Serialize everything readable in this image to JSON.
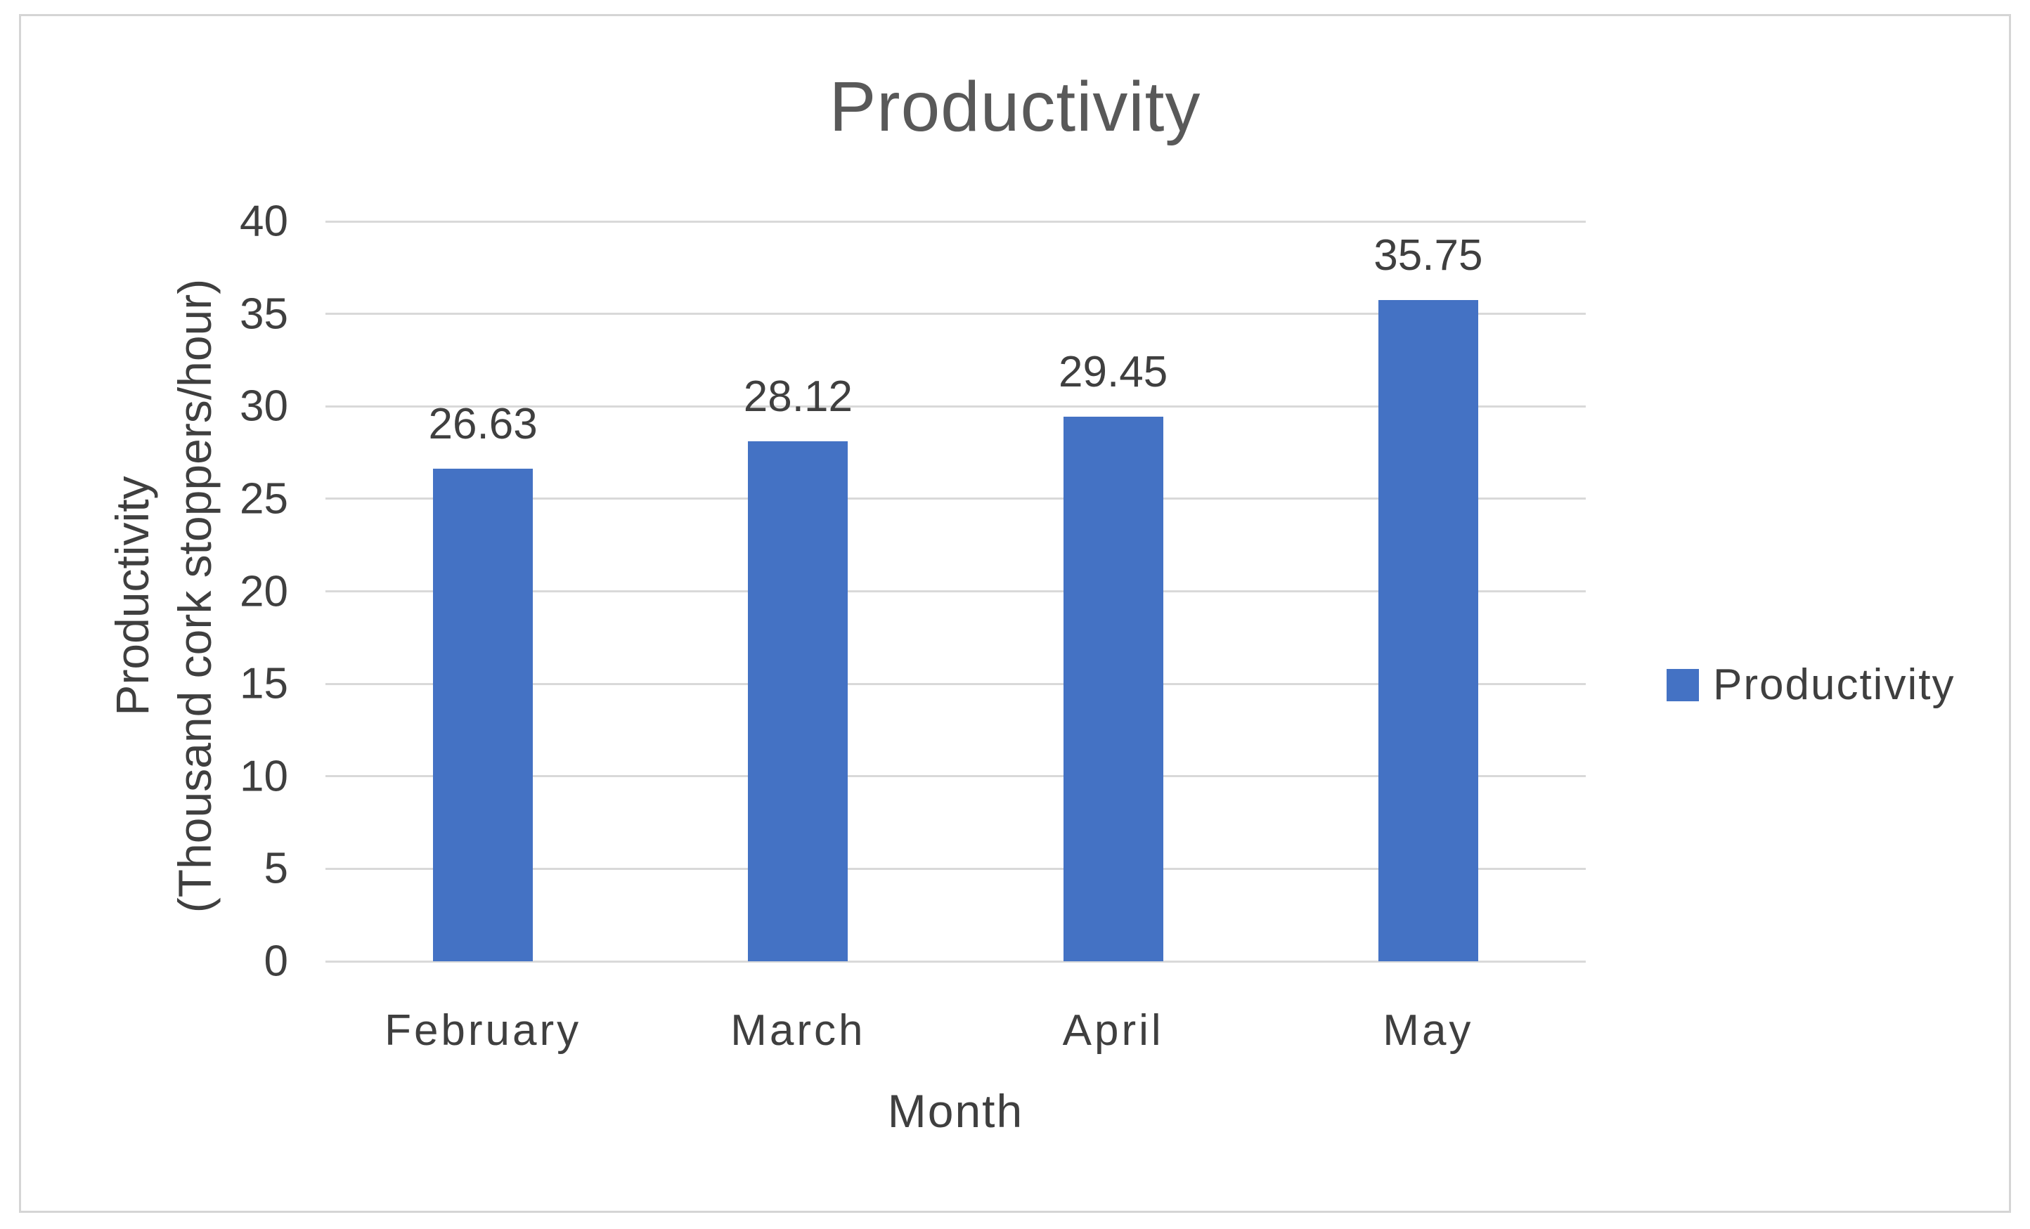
{
  "chart_data": {
    "type": "bar",
    "title": "Productivity",
    "categories": [
      "February",
      "March",
      "April",
      "May"
    ],
    "values": [
      26.63,
      28.12,
      29.45,
      35.75
    ],
    "data_labels": [
      "26.63",
      "28.12",
      "29.45",
      "35.75"
    ],
    "series": [
      {
        "name": "Productivity",
        "values": [
          26.63,
          28.12,
          29.45,
          35.75
        ]
      }
    ],
    "xlabel": "Month",
    "ylabel_line1": "Productivity",
    "ylabel_line2": "(Thousand cork stoppers/hour)",
    "ylim": [
      0,
      40
    ],
    "yticks": [
      0,
      5,
      10,
      15,
      20,
      25,
      30,
      35,
      40
    ],
    "grid": true,
    "legend": {
      "position": "right",
      "entries": [
        "Productivity"
      ]
    },
    "colors": {
      "bar": "#4472C4",
      "gridline": "#d9d9d9",
      "text": "#3f3f3f",
      "title_text": "#595959",
      "frame_border": "#d5d5d5"
    }
  }
}
